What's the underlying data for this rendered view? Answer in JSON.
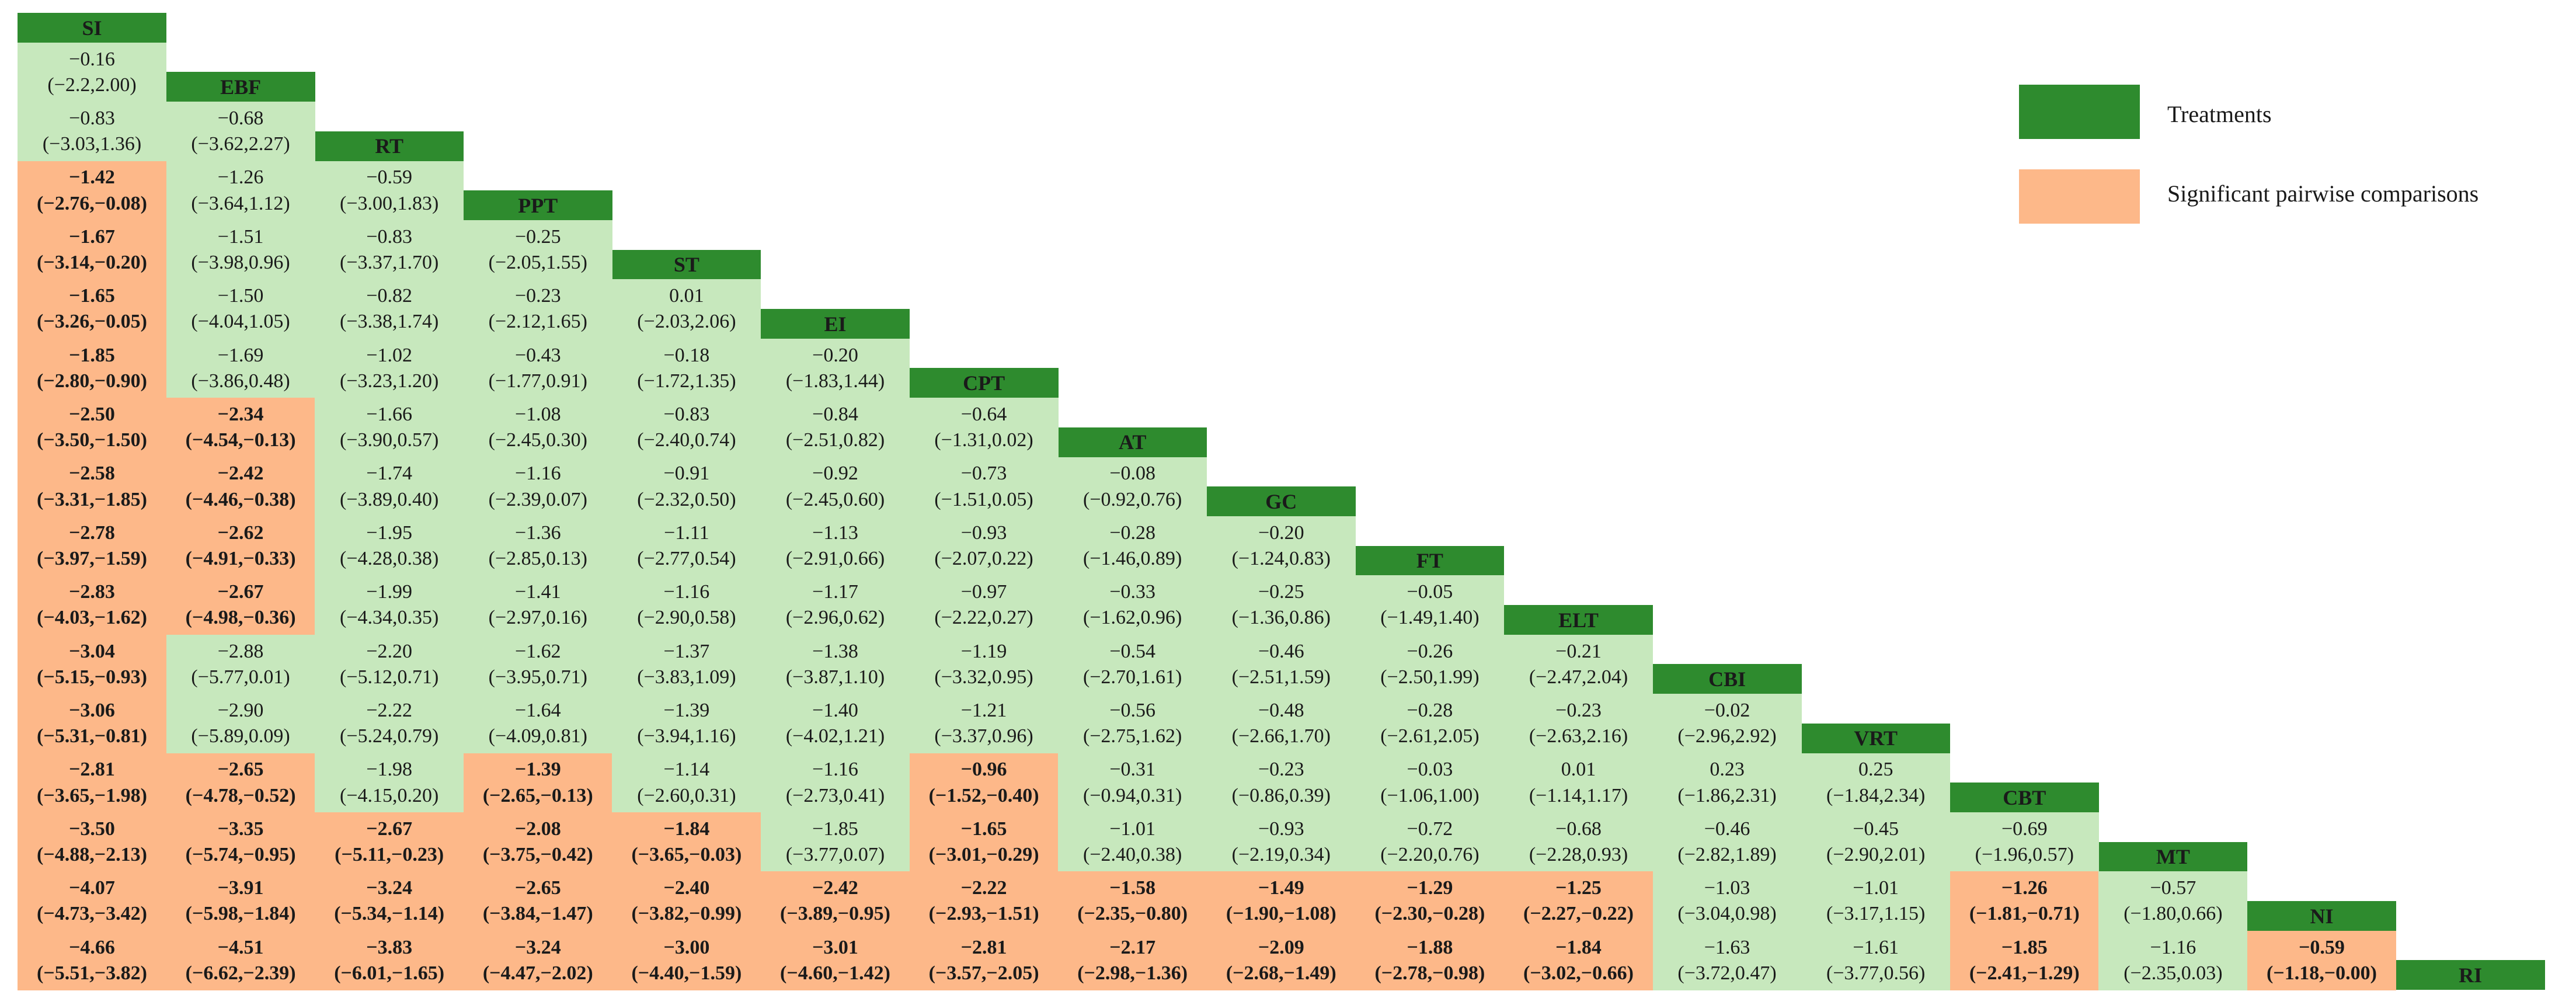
{
  "chart_data": {
    "type": "table",
    "treatments": [
      "SI",
      "EBF",
      "RT",
      "PPT",
      "ST",
      "EI",
      "CPT",
      "AT",
      "GC",
      "FT",
      "ELT",
      "CBI",
      "VRT",
      "CBT",
      "MT",
      "NI",
      "RI"
    ],
    "cells": [
      [],
      [
        [
          "−0.16",
          "(−2.2,2.00)",
          0
        ]
      ],
      [
        [
          "−0.83",
          "(−3.03,1.36)",
          0
        ],
        [
          "−0.68",
          "(−3.62,2.27)",
          0
        ]
      ],
      [
        [
          "−1.42",
          "(−2.76,−0.08)",
          1
        ],
        [
          "−1.26",
          "(−3.64,1.12)",
          0
        ],
        [
          "−0.59",
          "(−3.00,1.83)",
          0
        ]
      ],
      [
        [
          "−1.67",
          "(−3.14,−0.20)",
          1
        ],
        [
          "−1.51",
          "(−3.98,0.96)",
          0
        ],
        [
          "−0.83",
          "(−3.37,1.70)",
          0
        ],
        [
          "−0.25",
          "(−2.05,1.55)",
          0
        ]
      ],
      [
        [
          "−1.65",
          "(−3.26,−0.05)",
          1
        ],
        [
          "−1.50",
          "(−4.04,1.05)",
          0
        ],
        [
          "−0.82",
          "(−3.38,1.74)",
          0
        ],
        [
          "−0.23",
          "(−2.12,1.65)",
          0
        ],
        [
          "0.01",
          "(−2.03,2.06)",
          0
        ]
      ],
      [
        [
          "−1.85",
          "(−2.80,−0.90)",
          1
        ],
        [
          "−1.69",
          "(−3.86,0.48)",
          0
        ],
        [
          "−1.02",
          "(−3.23,1.20)",
          0
        ],
        [
          "−0.43",
          "(−1.77,0.91)",
          0
        ],
        [
          "−0.18",
          "(−1.72,1.35)",
          0
        ],
        [
          "−0.20",
          "(−1.83,1.44)",
          0
        ]
      ],
      [
        [
          "−2.50",
          "(−3.50,−1.50)",
          1
        ],
        [
          "−2.34",
          "(−4.54,−0.13)",
          1
        ],
        [
          "−1.66",
          "(−3.90,0.57)",
          0
        ],
        [
          "−1.08",
          "(−2.45,0.30)",
          0
        ],
        [
          "−0.83",
          "(−2.40,0.74)",
          0
        ],
        [
          "−0.84",
          "(−2.51,0.82)",
          0
        ],
        [
          "−0.64",
          "(−1.31,0.02)",
          0
        ]
      ],
      [
        [
          "−2.58",
          "(−3.31,−1.85)",
          1
        ],
        [
          "−2.42",
          "(−4.46,−0.38)",
          1
        ],
        [
          "−1.74",
          "(−3.89,0.40)",
          0
        ],
        [
          "−1.16",
          "(−2.39,0.07)",
          0
        ],
        [
          "−0.91",
          "(−2.32,0.50)",
          0
        ],
        [
          "−0.92",
          "(−2.45,0.60)",
          0
        ],
        [
          "−0.73",
          "(−1.51,0.05)",
          0
        ],
        [
          "−0.08",
          "(−0.92,0.76)",
          0
        ]
      ],
      [
        [
          "−2.78",
          "(−3.97,−1.59)",
          1
        ],
        [
          "−2.62",
          "(−4.91,−0.33)",
          1
        ],
        [
          "−1.95",
          "(−4.28,0.38)",
          0
        ],
        [
          "−1.36",
          "(−2.85,0.13)",
          0
        ],
        [
          "−1.11",
          "(−2.77,0.54)",
          0
        ],
        [
          "−1.13",
          "(−2.91,0.66)",
          0
        ],
        [
          "−0.93",
          "(−2.07,0.22)",
          0
        ],
        [
          "−0.28",
          "(−1.46,0.89)",
          0
        ],
        [
          "−0.20",
          "(−1.24,0.83)",
          0
        ]
      ],
      [
        [
          "−2.83",
          "(−4.03,−1.62)",
          1
        ],
        [
          "−2.67",
          "(−4.98,−0.36)",
          1
        ],
        [
          "−1.99",
          "(−4.34,0.35)",
          0
        ],
        [
          "−1.41",
          "(−2.97,0.16)",
          0
        ],
        [
          "−1.16",
          "(−2.90,0.58)",
          0
        ],
        [
          "−1.17",
          "(−2.96,0.62)",
          0
        ],
        [
          "−0.97",
          "(−2.22,0.27)",
          0
        ],
        [
          "−0.33",
          "(−1.62,0.96)",
          0
        ],
        [
          "−0.25",
          "(−1.36,0.86)",
          0
        ],
        [
          "−0.05",
          "(−1.49,1.40)",
          0
        ]
      ],
      [
        [
          "−3.04",
          "(−5.15,−0.93)",
          1
        ],
        [
          "−2.88",
          "(−5.77,0.01)",
          0
        ],
        [
          "−2.20",
          "(−5.12,0.71)",
          0
        ],
        [
          "−1.62",
          "(−3.95,0.71)",
          0
        ],
        [
          "−1.37",
          "(−3.83,1.09)",
          0
        ],
        [
          "−1.38",
          "(−3.87,1.10)",
          0
        ],
        [
          "−1.19",
          "(−3.32,0.95)",
          0
        ],
        [
          "−0.54",
          "(−2.70,1.61)",
          0
        ],
        [
          "−0.46",
          "(−2.51,1.59)",
          0
        ],
        [
          "−0.26",
          "(−2.50,1.99)",
          0
        ],
        [
          "−0.21",
          "(−2.47,2.04)",
          0
        ]
      ],
      [
        [
          "−3.06",
          "(−5.31,−0.81)",
          1
        ],
        [
          "−2.90",
          "(−5.89,0.09)",
          0
        ],
        [
          "−2.22",
          "(−5.24,0.79)",
          0
        ],
        [
          "−1.64",
          "(−4.09,0.81)",
          0
        ],
        [
          "−1.39",
          "(−3.94,1.16)",
          0
        ],
        [
          "−1.40",
          "(−4.02,1.21)",
          0
        ],
        [
          "−1.21",
          "(−3.37,0.96)",
          0
        ],
        [
          "−0.56",
          "(−2.75,1.62)",
          0
        ],
        [
          "−0.48",
          "(−2.66,1.70)",
          0
        ],
        [
          "−0.28",
          "(−2.61,2.05)",
          0
        ],
        [
          "−0.23",
          "(−2.63,2.16)",
          0
        ],
        [
          "−0.02",
          "(−2.96,2.92)",
          0
        ]
      ],
      [
        [
          "−2.81",
          "(−3.65,−1.98)",
          1
        ],
        [
          "−2.65",
          "(−4.78,−0.52)",
          1
        ],
        [
          "−1.98",
          "(−4.15,0.20)",
          0
        ],
        [
          "−1.39",
          "(−2.65,−0.13)",
          1
        ],
        [
          "−1.14",
          "(−2.60,0.31)",
          0
        ],
        [
          "−1.16",
          "(−2.73,0.41)",
          0
        ],
        [
          "−0.96",
          "(−1.52,−0.40)",
          1
        ],
        [
          "−0.31",
          "(−0.94,0.31)",
          0
        ],
        [
          "−0.23",
          "(−0.86,0.39)",
          0
        ],
        [
          "−0.03",
          "(−1.06,1.00)",
          0
        ],
        [
          "0.01",
          "(−1.14,1.17)",
          0
        ],
        [
          "0.23",
          "(−1.86,2.31)",
          0
        ],
        [
          "0.25",
          "(−1.84,2.34)",
          0
        ]
      ],
      [
        [
          "−3.50",
          "(−4.88,−2.13)",
          1
        ],
        [
          "−3.35",
          "(−5.74,−0.95)",
          1
        ],
        [
          "−2.67",
          "(−5.11,−0.23)",
          1
        ],
        [
          "−2.08",
          "(−3.75,−0.42)",
          1
        ],
        [
          "−1.84",
          "(−3.65,−0.03)",
          1
        ],
        [
          "−1.85",
          "(−3.77,0.07)",
          0
        ],
        [
          "−1.65",
          "(−3.01,−0.29)",
          1
        ],
        [
          "−1.01",
          "(−2.40,0.38)",
          0
        ],
        [
          "−0.93",
          "(−2.19,0.34)",
          0
        ],
        [
          "−0.72",
          "(−2.20,0.76)",
          0
        ],
        [
          "−0.68",
          "(−2.28,0.93)",
          0
        ],
        [
          "−0.46",
          "(−2.82,1.89)",
          0
        ],
        [
          "−0.45",
          "(−2.90,2.01)",
          0
        ],
        [
          "−0.69",
          "(−1.96,0.57)",
          0
        ]
      ],
      [
        [
          "−4.07",
          "(−4.73,−3.42)",
          1
        ],
        [
          "−3.91",
          "(−5.98,−1.84)",
          1
        ],
        [
          "−3.24",
          "(−5.34,−1.14)",
          1
        ],
        [
          "−2.65",
          "(−3.84,−1.47)",
          1
        ],
        [
          "−2.40",
          "(−3.82,−0.99)",
          1
        ],
        [
          "−2.42",
          "(−3.89,−0.95)",
          1
        ],
        [
          "−2.22",
          "(−2.93,−1.51)",
          1
        ],
        [
          "−1.58",
          "(−2.35,−0.80)",
          1
        ],
        [
          "−1.49",
          "(−1.90,−1.08)",
          1
        ],
        [
          "−1.29",
          "(−2.30,−0.28)",
          1
        ],
        [
          "−1.25",
          "(−2.27,−0.22)",
          1
        ],
        [
          "−1.03",
          "(−3.04,0.98)",
          0
        ],
        [
          "−1.01",
          "(−3.17,1.15)",
          0
        ],
        [
          "−1.26",
          "(−1.81,−0.71)",
          1
        ],
        [
          "−0.57",
          "(−1.80,0.66)",
          0
        ]
      ],
      [
        [
          "−4.66",
          "(−5.51,−3.82)",
          1
        ],
        [
          "−4.51",
          "(−6.62,−2.39)",
          1
        ],
        [
          "−3.83",
          "(−6.01,−1.65)",
          1
        ],
        [
          "−3.24",
          "(−4.47,−2.02)",
          1
        ],
        [
          "−3.00",
          "(−4.40,−1.59)",
          1
        ],
        [
          "−3.01",
          "(−4.60,−1.42)",
          1
        ],
        [
          "−2.81",
          "(−3.57,−2.05)",
          1
        ],
        [
          "−2.17",
          "(−2.98,−1.36)",
          1
        ],
        [
          "−2.09",
          "(−2.68,−1.49)",
          1
        ],
        [
          "−1.88",
          "(−2.78,−0.98)",
          1
        ],
        [
          "−1.84",
          "(−3.02,−0.66)",
          1
        ],
        [
          "−1.63",
          "(−3.72,0.47)",
          0
        ],
        [
          "−1.61",
          "(−3.77,0.56)",
          0
        ],
        [
          "−1.85",
          "(−2.41,−1.29)",
          1
        ],
        [
          "−1.16",
          "(−2.35,0.03)",
          0
        ],
        [
          "−0.59",
          "(−1.18,−0.00)",
          1
        ]
      ]
    ],
    "legend": [
      {
        "label": "Treatments",
        "color": "#2e8b2e"
      },
      {
        "label": "Significant pairwise comparisons",
        "color": "#fdb889"
      }
    ],
    "colors": {
      "treatment": "#2e8b2e",
      "non_significant": "#c7e8bd",
      "significant": "#fdb889"
    }
  }
}
